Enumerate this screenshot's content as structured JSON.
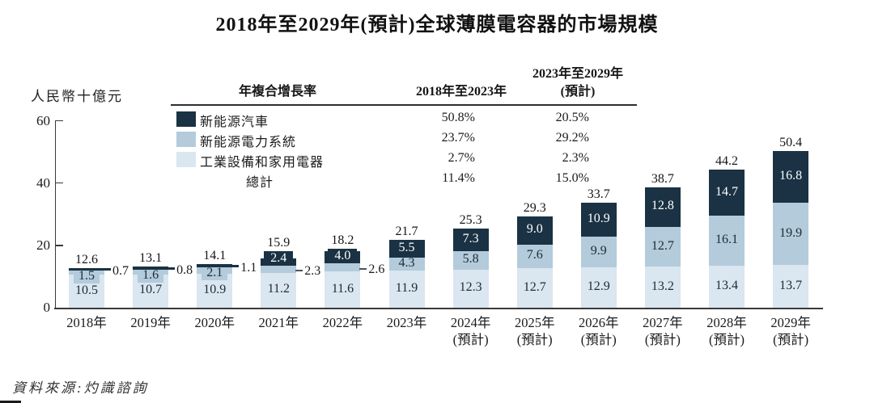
{
  "title": "2018年至2029年(預計)全球薄膜電容器的市場規模",
  "y_axis": {
    "unit_label": "人民幣十億元"
  },
  "source_note": "資料來源:灼識諮詢",
  "cagr_table": {
    "metric_header": "年複合增長率",
    "period1_header": "2018年至2023年",
    "period2_header_line1": "2023年至2029年",
    "period2_header_line2": "(預計)",
    "rows": [
      {
        "label": "新能源汽車",
        "period1": "50.8%",
        "period2": "20.5%"
      },
      {
        "label": "新能源電力系統",
        "period1": "23.7%",
        "period2": "29.2%"
      },
      {
        "label": "工業設備和家用電器",
        "period1": "2.7%",
        "period2": "2.3%"
      },
      {
        "label": "總計",
        "period1": "11.4%",
        "period2": "15.0%"
      }
    ]
  },
  "chart_data": {
    "type": "bar",
    "stacked": true,
    "title": "2018年至2029年(預計)全球薄膜電容器的市場規模",
    "xlabel": "",
    "ylabel": "人民幣十億元",
    "ylim": [
      0,
      60
    ],
    "yticks": [
      0,
      20,
      40,
      60
    ],
    "grid": false,
    "legend_position": "top-left",
    "categories": [
      "2018年",
      "2019年",
      "2020年",
      "2021年",
      "2022年",
      "2023年",
      "2024年",
      "2025年",
      "2026年",
      "2027年",
      "2028年",
      "2029年"
    ],
    "forecast_suffix": "(預計)",
    "forecast_from_index": 6,
    "series": [
      {
        "key": "industrial-home",
        "name": "工業設備和家用電器",
        "color": "#dae6f0",
        "label_color": "#1c2b36",
        "values": [
          10.5,
          10.7,
          10.9,
          11.2,
          11.6,
          11.9,
          12.3,
          12.7,
          12.9,
          13.2,
          13.4,
          13.7
        ],
        "label_out": []
      },
      {
        "key": "power-system",
        "name": "新能源電力系統",
        "color": "#b3cbdb",
        "label_color": "#1c2b36",
        "values": [
          1.5,
          1.6,
          2.1,
          2.3,
          2.6,
          4.3,
          5.8,
          7.6,
          9.9,
          12.7,
          16.1,
          19.9
        ],
        "label_out": [
          3,
          4
        ]
      },
      {
        "key": "nev",
        "name": "新能源汽車",
        "color": "#1a3243",
        "label_color": "#ffffff",
        "values": [
          0.7,
          0.8,
          1.1,
          2.4,
          4.0,
          5.5,
          7.3,
          9.0,
          10.9,
          12.8,
          14.7,
          16.8
        ],
        "label_out": [
          0,
          1,
          2
        ]
      }
    ],
    "totals": [
      12.6,
      13.1,
      14.1,
      15.9,
      18.2,
      21.7,
      25.3,
      29.3,
      33.7,
      38.7,
      44.2,
      50.4
    ]
  }
}
